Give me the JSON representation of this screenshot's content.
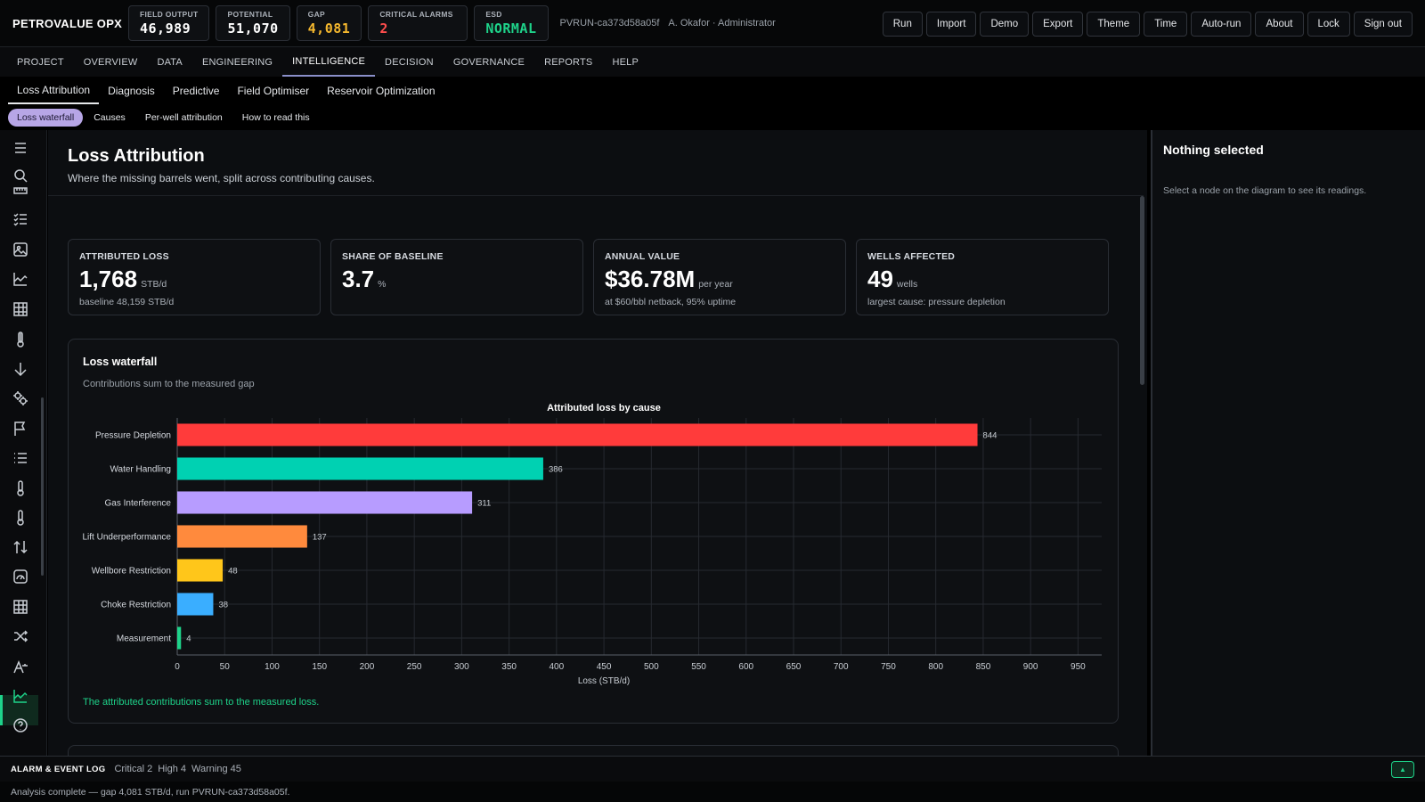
{
  "app": {
    "brand": "PETROVALUE OPX",
    "kpis": [
      {
        "label": "FIELD OUTPUT",
        "value": "46,989",
        "color": "#ffffff"
      },
      {
        "label": "POTENTIAL",
        "value": "51,070",
        "color": "#ffffff"
      },
      {
        "label": "GAP",
        "value": "4,081",
        "color": "#f5b82e"
      },
      {
        "label": "CRITICAL ALARMS",
        "value": "2",
        "color": "#ff4d4d"
      },
      {
        "label": "ESD",
        "value": "NORMAL",
        "color": "#1ed38a"
      }
    ],
    "run_id": "PVRUN-ca373d58a05f",
    "user": "A. Okafor · Administrator",
    "actions": [
      "Run",
      "Import",
      "Demo",
      "Export",
      "Theme",
      "Time",
      "Auto-run",
      "About",
      "Lock",
      "Sign out"
    ]
  },
  "mainnav": {
    "items": [
      "PROJECT",
      "OVERVIEW",
      "DATA",
      "ENGINEERING",
      "INTELLIGENCE",
      "DECISION",
      "GOVERNANCE",
      "REPORTS",
      "HELP"
    ],
    "active": "INTELLIGENCE"
  },
  "subnav": {
    "items": [
      "Loss Attribution",
      "Diagnosis",
      "Predictive",
      "Field Optimiser",
      "Reservoir Optimization"
    ],
    "active": "Loss Attribution"
  },
  "pills": {
    "items": [
      "Loss waterfall",
      "Causes",
      "Per-well attribution",
      "How to read this"
    ],
    "active": "Loss waterfall"
  },
  "rail": {
    "icons": [
      "menu-icon",
      "search-icon",
      "ruler-icon",
      "checklist-icon",
      "image-icon",
      "area-chart-icon",
      "table-icon",
      "thermometer-icon",
      "arrow-down-icon",
      "gears-icon",
      "flag-icon",
      "list-icon",
      "thermometer-icon",
      "thermometer-icon",
      "sort-arrows-icon",
      "gauge-icon",
      "grid-icon",
      "shuffle-icon",
      "translate-icon",
      "area-chart-icon",
      "help-icon"
    ],
    "active": "area-chart-icon"
  },
  "page": {
    "title": "Loss Attribution",
    "subtitle": "Where the missing barrels went, split across contributing causes."
  },
  "cards": [
    {
      "label": "ATTRIBUTED LOSS",
      "value": "1,768",
      "unit": "STB/d",
      "note": "baseline 48,159 STB/d"
    },
    {
      "label": "SHARE OF BASELINE",
      "value": "3.7",
      "unit": "%",
      "note": ""
    },
    {
      "label": "ANNUAL VALUE",
      "value": "$36.78M",
      "unit": "per year",
      "note": "at $60/bbl netback, 95% uptime"
    },
    {
      "label": "WELLS AFFECTED",
      "value": "49",
      "unit": "wells",
      "note": "largest cause: pressure depletion"
    }
  ],
  "panel": {
    "title": "Loss waterfall",
    "subtitle": "Contributions sum to the measured gap",
    "note": "The attributed contributions sum to the measured loss."
  },
  "chart_data": {
    "type": "bar",
    "orientation": "horizontal",
    "title": "Attributed loss by cause",
    "xlabel": "Loss (STB/d)",
    "ylabel": "",
    "xlim": [
      0,
      975
    ],
    "xticks": [
      0,
      50,
      100,
      150,
      200,
      250,
      300,
      350,
      400,
      450,
      500,
      550,
      600,
      650,
      700,
      750,
      800,
      850,
      900,
      950
    ],
    "grid": true,
    "categories": [
      "Pressure Depletion",
      "Water Handling",
      "Gas Interference",
      "Lift Underperformance",
      "Wellbore Restriction",
      "Choke Restriction",
      "Measurement"
    ],
    "values": [
      844,
      386,
      311,
      137,
      48,
      38,
      4
    ],
    "colors": [
      "#ff3b3b",
      "#00d1b2",
      "#b79cff",
      "#ff8a3d",
      "#ffc61a",
      "#3aaeff",
      "#1ed38a"
    ]
  },
  "inspector": {
    "title": "Nothing selected",
    "hint": "Select a node on the diagram to see its readings."
  },
  "alarms": {
    "title": "ALARM & EVENT LOG",
    "counts": [
      "Critical 2",
      "High 4",
      "Warning 45"
    ]
  },
  "status": {
    "text": "Analysis complete — gap 4,081 STB/d, run PVRUN-ca373d58a05f."
  }
}
